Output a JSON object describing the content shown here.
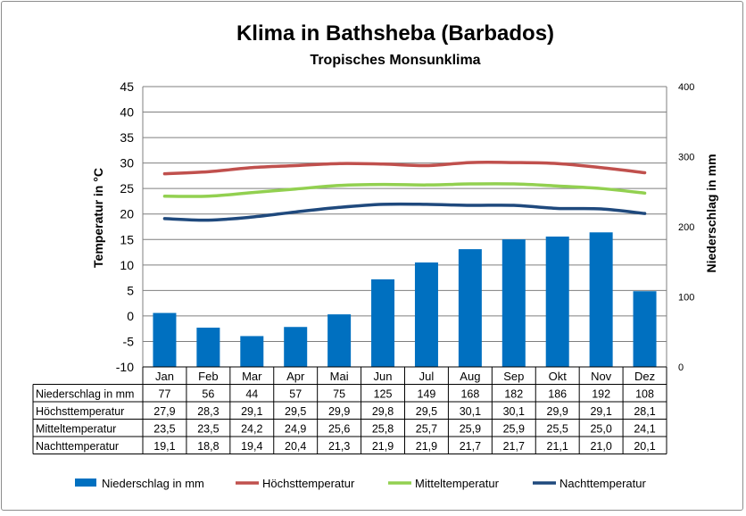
{
  "chart_data": {
    "type": "bar",
    "title": "Klima in Bathsheba (Barbados)",
    "subtitle": "Tropisches Monsunklima",
    "ylabel": "Temperatur in °C",
    "y2label": "Niederschlag in mm",
    "ylim": [
      -10,
      45
    ],
    "yticks": [
      -10,
      -5,
      0,
      5,
      10,
      15,
      20,
      25,
      30,
      35,
      40,
      45
    ],
    "y2lim": [
      0,
      400
    ],
    "y2ticks": [
      0,
      100,
      200,
      300,
      400
    ],
    "grid": true,
    "legend_position": "bottom",
    "categories": [
      "Jan",
      "Feb",
      "Mar",
      "Apr",
      "Mai",
      "Jun",
      "Jul",
      "Aug",
      "Sep",
      "Okt",
      "Nov",
      "Dez"
    ],
    "series": [
      {
        "name": "Niederschlag in mm",
        "type": "bar",
        "axis": "right",
        "color": "#0070C0",
        "values": [
          77,
          56,
          44,
          57,
          75,
          125,
          149,
          168,
          182,
          186,
          192,
          108
        ],
        "labels": [
          "77",
          "56",
          "44",
          "57",
          "75",
          "125",
          "149",
          "168",
          "182",
          "186",
          "192",
          "108"
        ]
      },
      {
        "name": "Höchsttemperatur",
        "type": "line",
        "axis": "left",
        "color": "#C0504D",
        "values": [
          27.9,
          28.3,
          29.1,
          29.5,
          29.9,
          29.8,
          29.5,
          30.1,
          30.1,
          29.9,
          29.1,
          28.1
        ],
        "labels": [
          "27,9",
          "28,3",
          "29,1",
          "29,5",
          "29,9",
          "29,8",
          "29,5",
          "30,1",
          "30,1",
          "29,9",
          "29,1",
          "28,1"
        ]
      },
      {
        "name": "Mitteltemperatur",
        "type": "line",
        "axis": "left",
        "color": "#92D050",
        "values": [
          23.5,
          23.5,
          24.2,
          24.9,
          25.6,
          25.8,
          25.7,
          25.9,
          25.9,
          25.5,
          25.0,
          24.1
        ],
        "labels": [
          "23,5",
          "23,5",
          "24,2",
          "24,9",
          "25,6",
          "25,8",
          "25,7",
          "25,9",
          "25,9",
          "25,5",
          "25,0",
          "24,1"
        ]
      },
      {
        "name": "Nachttemperatur",
        "type": "line",
        "axis": "left",
        "color": "#1F497D",
        "values": [
          19.1,
          18.8,
          19.4,
          20.4,
          21.3,
          21.9,
          21.9,
          21.7,
          21.7,
          21.1,
          21.0,
          20.1
        ],
        "labels": [
          "19,1",
          "18,8",
          "19,4",
          "20,4",
          "21,3",
          "21,9",
          "21,9",
          "21,7",
          "21,7",
          "21,1",
          "21,0",
          "20,1"
        ]
      }
    ]
  }
}
